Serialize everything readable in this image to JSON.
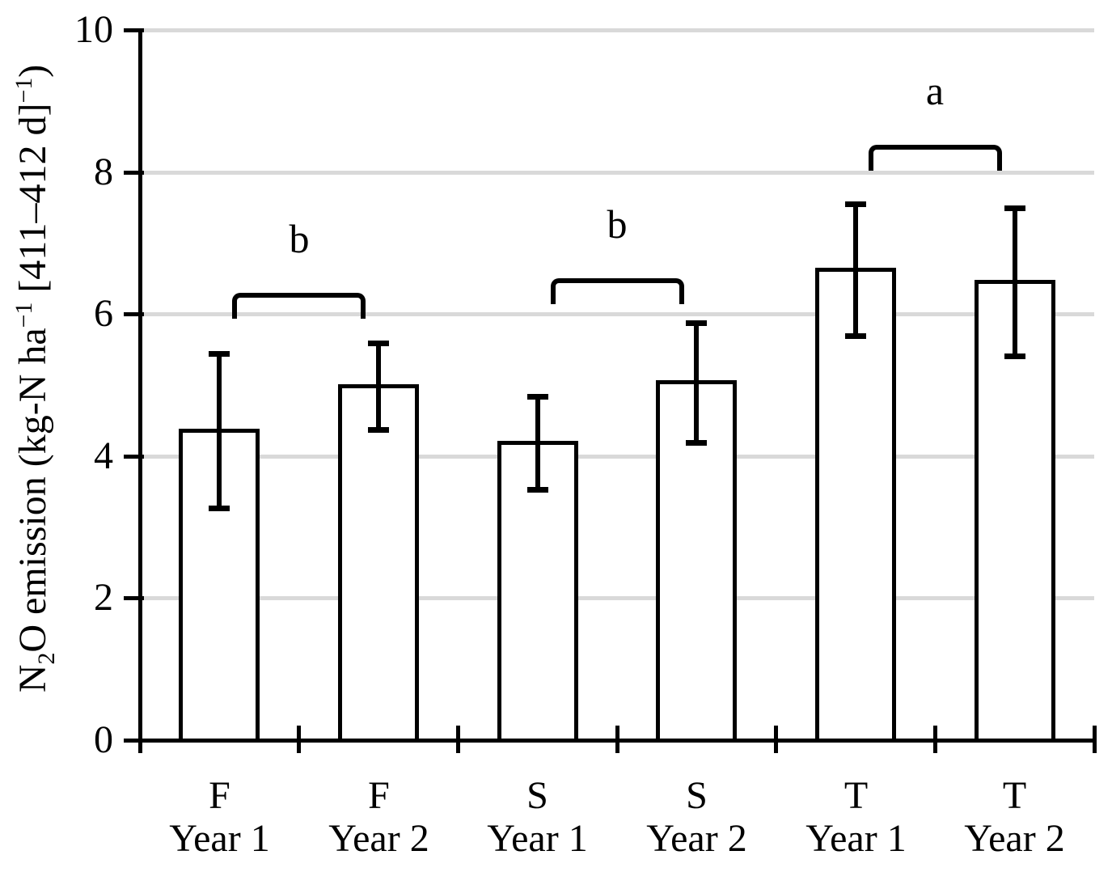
{
  "figure": {
    "background": "#ffffff",
    "text_color": "#000000"
  },
  "chart_data": {
    "type": "bar",
    "title": "",
    "xlabel": "",
    "ylabel": "N₂O emission (kg-N ha⁻¹ [411–412 d]⁻¹)",
    "ylabel_runs": [
      {
        "text": "N"
      },
      {
        "text": "2",
        "style": "sub"
      },
      {
        "text": "O emission (kg-N ha"
      },
      {
        "text": "−1",
        "style": "sup"
      },
      {
        "text": " [411–412 d]"
      },
      {
        "text": "−1",
        "style": "sup"
      },
      {
        "text": ")"
      }
    ],
    "ylim": [
      0,
      10
    ],
    "yticks": [
      0,
      2,
      4,
      6,
      8,
      10
    ],
    "grid": "horizontal",
    "gridline_color": "#d9d9d9",
    "legend": "none",
    "categories": [
      {
        "treatment": "F",
        "year": "Year 1"
      },
      {
        "treatment": "F",
        "year": "Year 2"
      },
      {
        "treatment": "S",
        "year": "Year 1"
      },
      {
        "treatment": "S",
        "year": "Year 2"
      },
      {
        "treatment": "T",
        "year": "Year 1"
      },
      {
        "treatment": "T",
        "year": "Year 2"
      }
    ],
    "values": [
      4.35,
      4.98,
      4.18,
      5.03,
      6.62,
      6.45
    ],
    "errors": [
      1.09,
      0.61,
      0.65,
      0.84,
      0.93,
      1.04
    ],
    "bar_style": {
      "fill": "#ffffff",
      "border": "#000000"
    },
    "significance_brackets": [
      {
        "label": "b",
        "from_category": 0,
        "to_category": 1,
        "y": 6.3
      },
      {
        "label": "b",
        "from_category": 2,
        "to_category": 3,
        "y": 6.5
      },
      {
        "label": "a",
        "from_category": 4,
        "to_category": 5,
        "y": 8.38
      }
    ]
  }
}
